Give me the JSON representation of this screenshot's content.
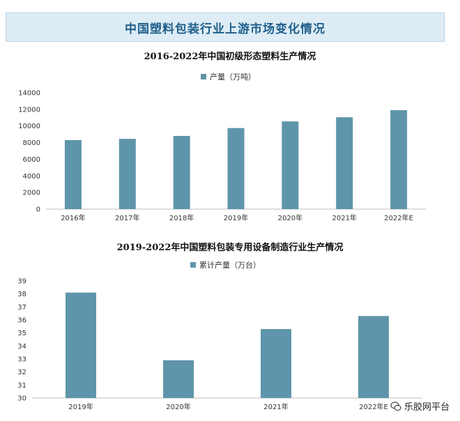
{
  "banner": {
    "title": "中国塑料包装行业上游市场变化情况"
  },
  "colors": {
    "bar": "#5f95aa",
    "banner_bg": "#ddecf5",
    "banner_text": "#1f5f8b"
  },
  "footer": {
    "text": "乐胶网平台",
    "icon": "wechat-icon"
  },
  "chart_data": [
    {
      "type": "bar",
      "title": "2016-2022年中国初级形态塑料生产情况",
      "categories": [
        "2016年",
        "2017年",
        "2018年",
        "2019年",
        "2020年",
        "2021年",
        "2022年E"
      ],
      "series": [
        {
          "name": "产量（万吨）",
          "values": [
            8300,
            8450,
            8800,
            9750,
            10550,
            11050,
            11900
          ]
        }
      ],
      "ylim": [
        0,
        14000
      ],
      "yticks": [
        0,
        2000,
        4000,
        6000,
        8000,
        10000,
        12000,
        14000
      ],
      "legend": "top-center",
      "grid": false
    },
    {
      "type": "bar",
      "title": "2019-2022年中国塑料包装专用设备制造行业生产情况",
      "categories": [
        "2019年",
        "2020年",
        "2021年",
        "2022年E"
      ],
      "series": [
        {
          "name": "累计产量（万台）",
          "values": [
            38.1,
            32.9,
            35.3,
            36.3
          ]
        }
      ],
      "ylim": [
        30,
        39
      ],
      "yticks": [
        30,
        31,
        32,
        33,
        34,
        35,
        36,
        37,
        38,
        39
      ],
      "legend": "top-center",
      "grid": false
    }
  ]
}
